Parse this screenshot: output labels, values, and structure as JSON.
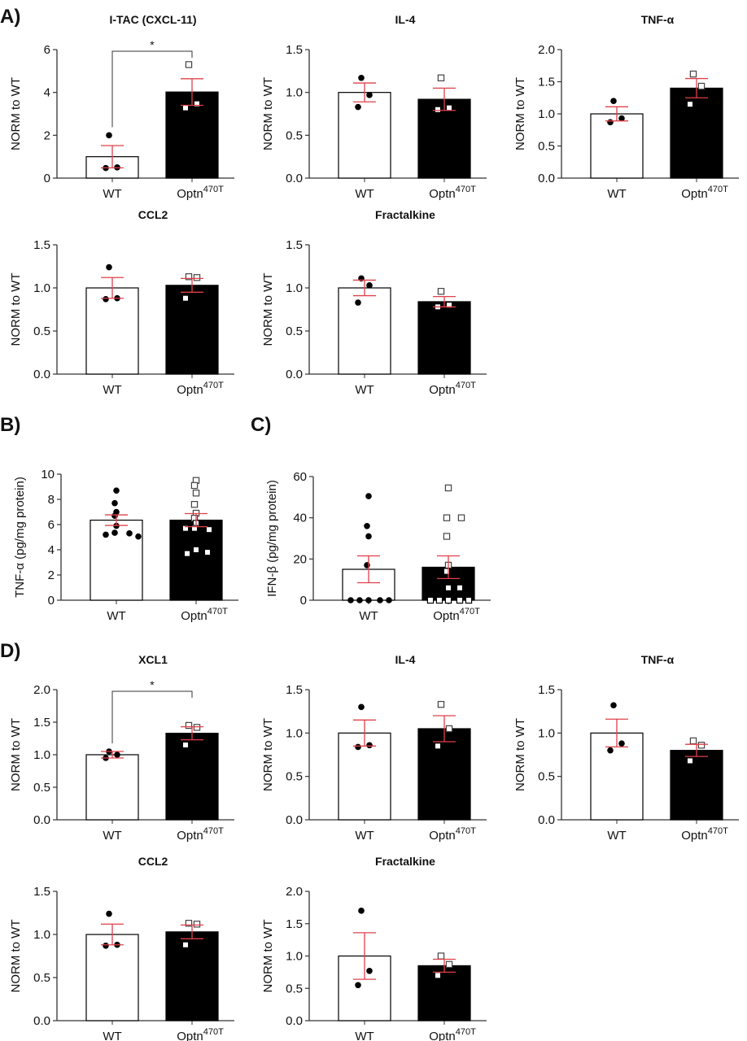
{
  "panel_labels": [
    "A)",
    "B)",
    "C)",
    "D)"
  ],
  "colors": {
    "error_bar": "#e0404a",
    "wt_bar": "#ffffff",
    "optn_bar": "#000000",
    "axis": "#333333"
  },
  "chart_data": [
    {
      "type": "bar",
      "title": "I-TAC (CXCL-11)",
      "ylabel": "NORM to WT",
      "ylim": [
        0,
        6
      ],
      "yticks": [
        "0",
        "2",
        "4",
        "6"
      ],
      "categories": [
        "WT",
        "Optn|470T"
      ],
      "series": [
        {
          "mean": 1.0,
          "sem": 0.52,
          "points": [
            2.0,
            0.5,
            0.47
          ]
        },
        {
          "mean": 4.02,
          "sem": 0.62,
          "points": [
            5.3,
            3.47,
            3.28
          ]
        }
      ],
      "significance": "*"
    },
    {
      "type": "bar",
      "title": "IL-4",
      "ylabel": "NORM to WT",
      "ylim": [
        0,
        1.5
      ],
      "yticks": [
        "0.0",
        "0.5",
        "1.0",
        "1.5"
      ],
      "categories": [
        "WT",
        "Optn|470T"
      ],
      "series": [
        {
          "mean": 1.0,
          "sem": 0.11,
          "points": [
            1.17,
            0.97,
            0.83
          ]
        },
        {
          "mean": 0.92,
          "sem": 0.13,
          "points": [
            1.17,
            0.82,
            0.8
          ]
        }
      ]
    },
    {
      "type": "bar",
      "title": "TNF-α",
      "ylabel": "NORM to WT",
      "ylim": [
        0,
        2
      ],
      "yticks": [
        "0.0",
        "0.5",
        "1.0",
        "1.5",
        "2.0"
      ],
      "categories": [
        "WT",
        "Optn|470T"
      ],
      "series": [
        {
          "mean": 1.0,
          "sem": 0.11,
          "points": [
            1.2,
            0.93,
            0.87
          ]
        },
        {
          "mean": 1.4,
          "sem": 0.15,
          "points": [
            1.62,
            1.43,
            1.15
          ]
        }
      ]
    },
    {
      "type": "bar",
      "title": "CCL2",
      "ylabel": "NORM to WT",
      "ylim": [
        0,
        1.5
      ],
      "yticks": [
        "0.0",
        "0.5",
        "1.0",
        "1.5"
      ],
      "categories": [
        "WT",
        "Optn|470T"
      ],
      "series": [
        {
          "mean": 1.0,
          "sem": 0.12,
          "points": [
            1.24,
            0.88,
            0.87
          ]
        },
        {
          "mean": 1.03,
          "sem": 0.08,
          "points": [
            1.13,
            1.12,
            0.88
          ]
        }
      ]
    },
    {
      "type": "bar",
      "title": "Fractalkine",
      "ylabel": "NORM to WT",
      "ylim": [
        0,
        1.5
      ],
      "yticks": [
        "0.0",
        "0.5",
        "1.0",
        "1.5"
      ],
      "categories": [
        "WT",
        "Optn|470T"
      ],
      "series": [
        {
          "mean": 1.0,
          "sem": 0.09,
          "points": [
            1.11,
            1.03,
            0.83
          ]
        },
        {
          "mean": 0.84,
          "sem": 0.06,
          "points": [
            0.96,
            0.8,
            0.78
          ]
        }
      ]
    },
    {
      "type": "bar",
      "title": "",
      "ylabel": "TNF-α (pg/mg protein)",
      "ylim": [
        0,
        10
      ],
      "yticks": [
        "0",
        "2",
        "4",
        "6",
        "8",
        "10"
      ],
      "categories": [
        "WT",
        "Optn|470T"
      ],
      "series": [
        {
          "mean": 6.35,
          "sem": 0.42,
          "points": [
            8.7,
            7.7,
            7.0,
            6.7,
            5.9,
            5.35,
            5.3,
            5.2,
            5.05
          ]
        },
        {
          "mean": 6.35,
          "sem": 0.52,
          "points": [
            9.5,
            9.1,
            8.5,
            7.6,
            6.9,
            6.5,
            6.1,
            5.7,
            5.6,
            5.7,
            4.0,
            3.8,
            3.7
          ]
        }
      ]
    },
    {
      "type": "bar",
      "title": "",
      "ylabel": "IFN-β (pg/mg protein)",
      "ylim": [
        0,
        60
      ],
      "yticks": [
        "0",
        "20",
        "40",
        "60"
      ],
      "categories": [
        "WT",
        "Optn|470T"
      ],
      "series": [
        {
          "mean": 15,
          "sem": 6.5,
          "points": [
            50.5,
            36,
            31,
            17,
            0,
            0,
            0,
            0,
            0
          ]
        },
        {
          "mean": 16,
          "sem": 5.5,
          "points": [
            54.5,
            40,
            40,
            31,
            17,
            14,
            6,
            6,
            0,
            0,
            0,
            0,
            0
          ]
        }
      ]
    },
    {
      "type": "bar",
      "title": "XCL1",
      "ylabel": "NORM to WT",
      "ylim": [
        0,
        2
      ],
      "yticks": [
        "0.0",
        "0.5",
        "1.0",
        "1.5",
        "2.0"
      ],
      "categories": [
        "WT",
        "Optn|470T"
      ],
      "series": [
        {
          "mean": 1.0,
          "sem": 0.05,
          "points": [
            1.05,
            1.0,
            0.95
          ]
        },
        {
          "mean": 1.33,
          "sem": 0.1,
          "points": [
            1.45,
            1.42,
            1.15
          ]
        }
      ],
      "significance": "*"
    },
    {
      "type": "bar",
      "title": "IL-4",
      "ylabel": "NORM to WT",
      "ylim": [
        0,
        1.5
      ],
      "yticks": [
        "0.0",
        "0.5",
        "1.0",
        "1.5"
      ],
      "categories": [
        "WT",
        "Optn|470T"
      ],
      "series": [
        {
          "mean": 1.0,
          "sem": 0.15,
          "points": [
            1.3,
            0.86,
            0.84
          ]
        },
        {
          "mean": 1.05,
          "sem": 0.15,
          "points": [
            1.33,
            1.05,
            0.85
          ]
        }
      ]
    },
    {
      "type": "bar",
      "title": "TNF-α",
      "ylabel": "NORM to WT",
      "ylim": [
        0,
        1.5
      ],
      "yticks": [
        "0.0",
        "0.5",
        "1.0",
        "1.5"
      ],
      "categories": [
        "WT",
        "Optn|470T"
      ],
      "series": [
        {
          "mean": 1.0,
          "sem": 0.16,
          "points": [
            1.32,
            0.88,
            0.8
          ]
        },
        {
          "mean": 0.8,
          "sem": 0.07,
          "points": [
            0.91,
            0.86,
            0.68
          ]
        }
      ]
    },
    {
      "type": "bar",
      "title": "CCL2",
      "ylabel": "NORM to WT",
      "ylim": [
        0,
        1.5
      ],
      "yticks": [
        "0.0",
        "0.5",
        "1.0",
        "1.5"
      ],
      "categories": [
        "WT",
        "Optn|470T"
      ],
      "series": [
        {
          "mean": 1.0,
          "sem": 0.12,
          "points": [
            1.24,
            0.88,
            0.87
          ]
        },
        {
          "mean": 1.03,
          "sem": 0.08,
          "points": [
            1.13,
            1.12,
            0.88
          ]
        }
      ]
    },
    {
      "type": "bar",
      "title": "Fractalkine",
      "ylabel": "NORM to WT",
      "ylim": [
        0,
        2
      ],
      "yticks": [
        "0.0",
        "0.5",
        "1.0",
        "1.5",
        "2.0"
      ],
      "categories": [
        "WT",
        "Optn|470T"
      ],
      "series": [
        {
          "mean": 1.0,
          "sem": 0.36,
          "points": [
            1.7,
            0.77,
            0.55
          ]
        },
        {
          "mean": 0.85,
          "sem": 0.1,
          "points": [
            1.0,
            0.87,
            0.7
          ]
        }
      ]
    }
  ]
}
